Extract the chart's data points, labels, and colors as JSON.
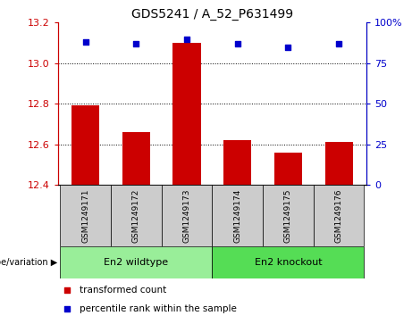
{
  "title": "GDS5241 / A_52_P631499",
  "samples": [
    "GSM1249171",
    "GSM1249172",
    "GSM1249173",
    "GSM1249174",
    "GSM1249175",
    "GSM1249176"
  ],
  "bar_values": [
    12.79,
    12.66,
    13.1,
    12.62,
    12.56,
    12.61
  ],
  "bar_bottom": 12.4,
  "percentile_values": [
    88,
    87,
    90,
    87,
    85,
    87
  ],
  "ylim_left": [
    12.4,
    13.2
  ],
  "yticks_left": [
    12.4,
    12.6,
    12.8,
    13.0,
    13.2
  ],
  "yticks_right": [
    0,
    25,
    50,
    75,
    100
  ],
  "bar_color": "#cc0000",
  "percentile_color": "#0000cc",
  "groups": [
    {
      "label": "En2 wildtype",
      "color": "#88ee88"
    },
    {
      "label": "En2 knockout",
      "color": "#55dd55"
    }
  ],
  "legend_bar_label": "transformed count",
  "legend_percentile_label": "percentile rank within the sample",
  "label_color_left": "#cc0000",
  "label_color_right": "#0000cc",
  "bg_sample": "#cccccc",
  "bg_group1": "#99ee99",
  "bg_group2": "#55dd55"
}
